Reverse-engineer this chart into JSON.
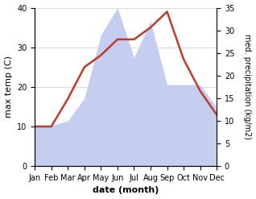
{
  "months": [
    "Jan",
    "Feb",
    "Mar",
    "Apr",
    "May",
    "Jun",
    "Jul",
    "Aug",
    "Sep",
    "Oct",
    "Nov",
    "Dec"
  ],
  "temperature": [
    10,
    10,
    17,
    25,
    28,
    32,
    32,
    35,
    39,
    27,
    19,
    13
  ],
  "precipitation": [
    9,
    9,
    10,
    15,
    29,
    35,
    24,
    32,
    18,
    18,
    18,
    13
  ],
  "temp_color": "#c0392b",
  "precip_color_fill": "#c5cdf0",
  "ylabel_left": "max temp (C)",
  "ylabel_right": "med. precipitation (kg/m2)",
  "xlabel": "date (month)",
  "ylim_left": [
    0,
    40
  ],
  "ylim_right": [
    0,
    35
  ],
  "yticks_left": [
    0,
    10,
    20,
    30,
    40
  ],
  "yticks_right": [
    0,
    5,
    10,
    15,
    20,
    25,
    30,
    35
  ],
  "temp_linewidth": 1.8,
  "fig_width": 3.18,
  "fig_height": 2.47,
  "dpi": 100
}
